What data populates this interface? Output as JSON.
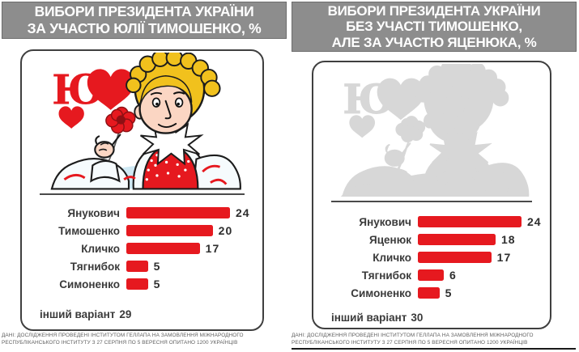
{
  "colors": {
    "accent_red": "#e6191f",
    "title_bar_bg": "#8d8d8d",
    "title_text": "#ffffff",
    "label_text": "#3a3a3a",
    "card_border": "#3f3f3f",
    "silhouette_gray": "#d7d7d7",
    "hair_yellow": "#f1c11d",
    "skin": "#fbd6c3",
    "wash_blue": "#cfe9f4"
  },
  "left_panel": {
    "title_lines": [
      "ВИБОРИ ПРЕЗИДЕНТА УКРАЇНИ",
      "ЗА УЧАСТЮ ЮЛІЇ ТИМОШЕНКО, %"
    ]
  },
  "right_panel": {
    "title_lines": [
      "ВИБОРИ ПРЕЗИДЕНТА УКРАЇНИ",
      "БЕЗ УЧАСТІ ТИМОШЕНКО,",
      "АЛЕ ЗА УЧАСТЮ ЯЦЕНЮКА, %"
    ]
  },
  "illustration": {
    "letter": "Ю",
    "left_style": "color playing-card cartoon of woman with blonde crown braid holding red flower, red letter and hearts",
    "right_style": "same artwork as flat light-gray silhouette"
  },
  "chart_data": [
    {
      "type": "bar",
      "title": "ВИБОРИ ПРЕЗИДЕНТА УКРАЇНИ ЗА УЧАСТЮ ЮЛІЇ ТИМОШЕНКО, %",
      "categories": [
        "Янукович",
        "Тимошенко",
        "Кличко",
        "Тягнибок",
        "Симоненко"
      ],
      "values": [
        24,
        20,
        17,
        5,
        5
      ],
      "other_option_label": "інший варіант",
      "other_option_value": 29,
      "bar_color": "#e6191f",
      "xlim": [
        0,
        24
      ],
      "orientation": "horizontal",
      "grid": false,
      "legend": false
    },
    {
      "type": "bar",
      "title": "ВИБОРИ ПРЕЗИДЕНТА УКРАЇНИ БЕЗ УЧАСТІ ТИМОШЕНКО, АЛЕ ЗА УЧАСТЮ ЯЦЕНЮКА, %",
      "categories": [
        "Янукович",
        "Яценюк",
        "Кличко",
        "Тягнибок",
        "Симоненко"
      ],
      "values": [
        24,
        18,
        17,
        6,
        5
      ],
      "other_option_label": "інший варіант",
      "other_option_value": 30,
      "bar_color": "#e6191f",
      "xlim": [
        0,
        24
      ],
      "orientation": "horizontal",
      "grid": false,
      "legend": false
    }
  ],
  "footnote": {
    "lines": [
      "ДАНІ: ДОСЛІДЖЕННЯ ПРОВЕДЕНІ ІНСТИТУТОМ ГЕЛЛАПА НА ЗАМОВЛЕННЯ МІЖНАРОДНОГО",
      "РЕСПУБЛІКАНСЬКОГО ІНСТИТУТУ З 27 СЕРПНЯ ПО 5 ВЕРЕСНЯ ОПИТАНО 1200 УКРАЇНЦІВ"
    ]
  }
}
